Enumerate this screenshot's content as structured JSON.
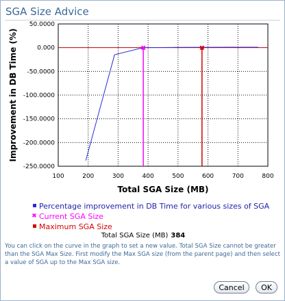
{
  "dialog": {
    "title": "SGA Size Advice"
  },
  "chart_data": {
    "type": "line",
    "xlabel": "Total SGA Size (MB)",
    "ylabel": "Improvement in DB Time (%)",
    "xlim": [
      100,
      800
    ],
    "ylim": [
      -250,
      50
    ],
    "xticks": [
      "100",
      "200",
      "300",
      "400",
      "500",
      "600",
      "700",
      "800"
    ],
    "yticks": [
      "50.0000",
      "0.000",
      "-50.0000",
      "-100.0000",
      "-150.0000",
      "-200.0000",
      "-250.0000"
    ],
    "grid": true,
    "series": [
      {
        "name": "Percentage improvement in DB Time for various sizes of SGA",
        "color": "#2b2bd6",
        "x": [
          192,
          288,
          384,
          480,
          576,
          672,
          768
        ],
        "y": [
          -238,
          -15,
          0,
          0.5,
          0.8,
          1,
          1
        ]
      }
    ],
    "current_sga": {
      "label": "Current SGA Size",
      "x": 384,
      "color": "#ff00ff"
    },
    "max_sga": {
      "label": "Maximum SGA Size",
      "x": 580,
      "color": "#d40000"
    },
    "baseline_color": "#b40000"
  },
  "current_value": {
    "label": "Total SGA Size (MB)",
    "value": "384"
  },
  "help_text": "You can click on the curve in the graph to set a new value. Total SGA Size cannot be greater than the SGA Max Size. First modify the Max SGA size (from the parent page) and then select a value of SGA up to the Max SGA size.",
  "buttons": {
    "cancel": "Cancel",
    "ok": "OK"
  }
}
